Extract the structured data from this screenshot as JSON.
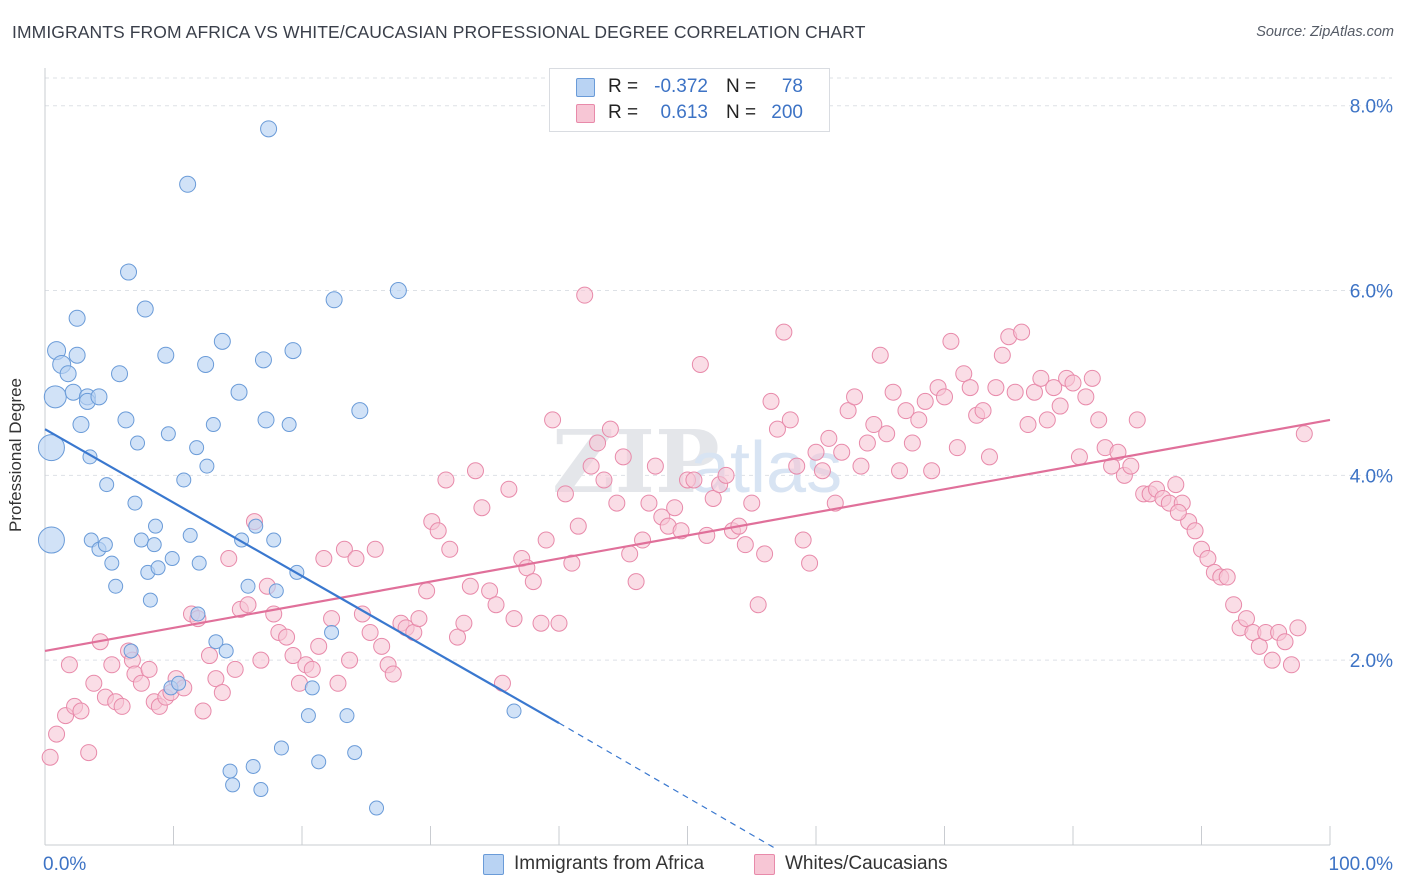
{
  "header": {
    "title": "IMMIGRANTS FROM AFRICA VS WHITE/CAUCASIAN PROFESSIONAL DEGREE CORRELATION CHART",
    "source": "Source: ZipAtlas.com"
  },
  "legend": {
    "rows": [
      {
        "r_label": "R =",
        "r_value": "-0.372",
        "n_label": "N =",
        "n_value": "78"
      },
      {
        "r_label": "R =",
        "r_value": "0.613",
        "n_label": "N =",
        "n_value": "200"
      }
    ]
  },
  "watermark": {
    "zip": "ZIP",
    "atlas": "atlas"
  },
  "colors": {
    "blue_fill": "#b9d3f3",
    "blue_stroke": "#6a9bd8",
    "blue_line": "#3a78cf",
    "pink_fill": "#f7c6d5",
    "pink_stroke": "#e88aaa",
    "pink_line": "#e0709a",
    "axis_text": "#3d73c5",
    "grid": "#dde1e6"
  },
  "chart_data": {
    "type": "scatter",
    "title": "IMMIGRANTS FROM AFRICA VS WHITE/CAUCASIAN PROFESSIONAL DEGREE CORRELATION CHART",
    "xlabel": "",
    "ylabel": "Professional Degree",
    "xlim": [
      0,
      100
    ],
    "ylim": [
      0,
      8.3
    ],
    "x_tick_labels": [
      "0.0%",
      "100.0%"
    ],
    "y_ticks": [
      2,
      4,
      6,
      8
    ],
    "y_tick_labels": [
      "2.0%",
      "4.0%",
      "6.0%",
      "8.0%"
    ],
    "grid": true,
    "legend_position": "bottom-center",
    "series": [
      {
        "name": "Immigrants from Africa",
        "color": "#b9d3f3",
        "r": -0.372,
        "n": 78,
        "trend": {
          "x0": 0,
          "y0": 4.5,
          "x1": 40,
          "y1": 1.32,
          "dashed_to_x": 57,
          "dashed_to_y": -0.05
        },
        "points": [
          [
            0.5,
            3.3,
            13
          ],
          [
            0.5,
            4.3,
            13
          ],
          [
            0.8,
            4.85,
            11
          ],
          [
            0.9,
            5.35,
            9
          ],
          [
            1.3,
            5.2,
            9
          ],
          [
            1.8,
            5.1,
            8
          ],
          [
            2.2,
            4.9,
            8
          ],
          [
            2.5,
            5.3,
            8
          ],
          [
            2.5,
            5.7,
            8
          ],
          [
            2.8,
            4.55,
            8
          ],
          [
            3.3,
            4.85,
            8
          ],
          [
            3.3,
            4.8,
            8
          ],
          [
            3.5,
            4.2,
            7
          ],
          [
            3.6,
            3.3,
            7
          ],
          [
            4.2,
            3.2,
            7
          ],
          [
            4.2,
            4.85,
            8
          ],
          [
            4.7,
            3.25,
            7
          ],
          [
            4.8,
            3.9,
            7
          ],
          [
            5.2,
            3.05,
            7
          ],
          [
            5.5,
            2.8,
            7
          ],
          [
            5.8,
            5.1,
            8
          ],
          [
            6.3,
            4.6,
            8
          ],
          [
            6.5,
            6.2,
            8
          ],
          [
            6.7,
            2.1,
            7
          ],
          [
            7.0,
            3.7,
            7
          ],
          [
            7.2,
            4.35,
            7
          ],
          [
            7.5,
            3.3,
            7
          ],
          [
            7.8,
            5.8,
            8
          ],
          [
            8.0,
            2.95,
            7
          ],
          [
            8.2,
            2.65,
            7
          ],
          [
            8.5,
            3.25,
            7
          ],
          [
            8.6,
            3.45,
            7
          ],
          [
            8.8,
            3.0,
            7
          ],
          [
            9.4,
            5.3,
            8
          ],
          [
            9.6,
            4.45,
            7
          ],
          [
            9.8,
            1.7,
            7
          ],
          [
            9.9,
            3.1,
            7
          ],
          [
            10.4,
            1.75,
            7
          ],
          [
            10.8,
            3.95,
            7
          ],
          [
            11.1,
            7.15,
            8
          ],
          [
            11.3,
            3.35,
            7
          ],
          [
            11.8,
            4.3,
            7
          ],
          [
            11.9,
            2.5,
            7
          ],
          [
            12.0,
            3.05,
            7
          ],
          [
            12.5,
            5.2,
            8
          ],
          [
            12.6,
            4.1,
            7
          ],
          [
            13.1,
            4.55,
            7
          ],
          [
            13.3,
            2.2,
            7
          ],
          [
            13.8,
            5.45,
            8
          ],
          [
            14.1,
            2.1,
            7
          ],
          [
            14.4,
            0.8,
            7
          ],
          [
            14.6,
            0.65,
            7
          ],
          [
            15.1,
            4.9,
            8
          ],
          [
            15.3,
            3.3,
            7
          ],
          [
            15.8,
            2.8,
            7
          ],
          [
            16.2,
            0.85,
            7
          ],
          [
            16.4,
            3.45,
            7
          ],
          [
            16.8,
            0.6,
            7
          ],
          [
            17.0,
            5.25,
            8
          ],
          [
            17.2,
            4.6,
            8
          ],
          [
            17.4,
            7.75,
            8
          ],
          [
            17.8,
            3.3,
            7
          ],
          [
            18.0,
            2.75,
            7
          ],
          [
            18.4,
            1.05,
            7
          ],
          [
            19.0,
            4.55,
            7
          ],
          [
            19.3,
            5.35,
            8
          ],
          [
            19.6,
            2.95,
            7
          ],
          [
            20.5,
            1.4,
            7
          ],
          [
            20.8,
            1.7,
            7
          ],
          [
            21.3,
            0.9,
            7
          ],
          [
            22.3,
            2.3,
            7
          ],
          [
            22.5,
            5.9,
            8
          ],
          [
            23.5,
            1.4,
            7
          ],
          [
            24.1,
            1.0,
            7
          ],
          [
            24.5,
            4.7,
            8
          ],
          [
            25.8,
            0.4,
            7
          ],
          [
            27.5,
            6.0,
            8
          ],
          [
            36.5,
            1.45,
            7
          ]
        ]
      },
      {
        "name": "Whites/Caucasians",
        "color": "#f7c6d5",
        "r": 0.613,
        "n": 200,
        "trend": {
          "x0": 0,
          "y0": 2.1,
          "x1": 100,
          "y1": 4.6
        },
        "points": [
          [
            0.4,
            0.95
          ],
          [
            0.9,
            1.2
          ],
          [
            1.6,
            1.4
          ],
          [
            1.9,
            1.95
          ],
          [
            2.3,
            1.5
          ],
          [
            2.8,
            1.45
          ],
          [
            3.4,
            1.0
          ],
          [
            3.8,
            1.75
          ],
          [
            4.3,
            2.2
          ],
          [
            4.7,
            1.6
          ],
          [
            5.2,
            1.95
          ],
          [
            5.5,
            1.55
          ],
          [
            6.0,
            1.5
          ],
          [
            6.5,
            2.1
          ],
          [
            6.8,
            2.0
          ],
          [
            7.0,
            1.85
          ],
          [
            7.5,
            1.75
          ],
          [
            8.1,
            1.9
          ],
          [
            8.5,
            1.55
          ],
          [
            8.9,
            1.5
          ],
          [
            9.4,
            1.6
          ],
          [
            9.8,
            1.65
          ],
          [
            10.2,
            1.8
          ],
          [
            10.8,
            1.7
          ],
          [
            11.4,
            2.5
          ],
          [
            11.9,
            2.45
          ],
          [
            12.3,
            1.45
          ],
          [
            12.8,
            2.05
          ],
          [
            13.3,
            1.8
          ],
          [
            13.8,
            1.65
          ],
          [
            14.3,
            3.1
          ],
          [
            14.8,
            1.9
          ],
          [
            15.2,
            2.55
          ],
          [
            15.8,
            2.6
          ],
          [
            16.3,
            3.5
          ],
          [
            16.8,
            2.0
          ],
          [
            17.3,
            2.8
          ],
          [
            17.8,
            2.5
          ],
          [
            18.2,
            2.3
          ],
          [
            18.8,
            2.25
          ],
          [
            19.3,
            2.05
          ],
          [
            19.8,
            1.75
          ],
          [
            20.3,
            1.95
          ],
          [
            20.8,
            1.9
          ],
          [
            21.3,
            2.15
          ],
          [
            21.7,
            3.1
          ],
          [
            22.3,
            2.45
          ],
          [
            22.8,
            1.75
          ],
          [
            23.3,
            3.2
          ],
          [
            23.7,
            2.0
          ],
          [
            24.2,
            3.1
          ],
          [
            24.7,
            2.5
          ],
          [
            25.3,
            2.3
          ],
          [
            25.7,
            3.2
          ],
          [
            26.2,
            2.15
          ],
          [
            26.7,
            1.95
          ],
          [
            27.1,
            1.85
          ],
          [
            27.7,
            2.4
          ],
          [
            28.1,
            2.35
          ],
          [
            28.7,
            2.3
          ],
          [
            29.1,
            2.45
          ],
          [
            29.7,
            2.75
          ],
          [
            30.1,
            3.5
          ],
          [
            30.6,
            3.4
          ],
          [
            31.2,
            3.95
          ],
          [
            31.5,
            3.2
          ],
          [
            32.1,
            2.25
          ],
          [
            32.6,
            2.4
          ],
          [
            33.1,
            2.8
          ],
          [
            33.5,
            4.05
          ],
          [
            34.0,
            3.65
          ],
          [
            34.6,
            2.75
          ],
          [
            35.1,
            2.6
          ],
          [
            35.6,
            1.75
          ],
          [
            36.1,
            3.85
          ],
          [
            36.5,
            2.45
          ],
          [
            37.1,
            3.1
          ],
          [
            37.5,
            3.0
          ],
          [
            38.0,
            2.85
          ],
          [
            38.6,
            2.4
          ],
          [
            39.0,
            3.3
          ],
          [
            39.5,
            4.6
          ],
          [
            40.0,
            2.4
          ],
          [
            40.5,
            3.8
          ],
          [
            41.0,
            3.05
          ],
          [
            41.5,
            3.45
          ],
          [
            42.0,
            5.95
          ],
          [
            42.5,
            4.1
          ],
          [
            43.0,
            4.35
          ],
          [
            43.5,
            3.95
          ],
          [
            44.0,
            4.5
          ],
          [
            44.5,
            3.7
          ],
          [
            45.0,
            4.2
          ],
          [
            45.5,
            3.15
          ],
          [
            46.0,
            2.85
          ],
          [
            46.5,
            3.3
          ],
          [
            47.0,
            3.7
          ],
          [
            47.5,
            4.1
          ],
          [
            48.0,
            3.55
          ],
          [
            48.5,
            3.45
          ],
          [
            49.0,
            3.65
          ],
          [
            49.5,
            3.4
          ],
          [
            50.0,
            3.95
          ],
          [
            50.5,
            3.95
          ],
          [
            51.0,
            5.2
          ],
          [
            51.5,
            3.35
          ],
          [
            52.0,
            3.75
          ],
          [
            52.5,
            3.9
          ],
          [
            53.0,
            4.0
          ],
          [
            53.5,
            3.4
          ],
          [
            54.0,
            3.45
          ],
          [
            54.5,
            3.25
          ],
          [
            55.0,
            3.7
          ],
          [
            55.5,
            2.6
          ],
          [
            56.0,
            3.15
          ],
          [
            56.5,
            4.8
          ],
          [
            57.0,
            4.5
          ],
          [
            57.5,
            5.55
          ],
          [
            58.0,
            4.6
          ],
          [
            58.5,
            4.1
          ],
          [
            59.0,
            3.3
          ],
          [
            59.5,
            3.05
          ],
          [
            60.0,
            4.25
          ],
          [
            60.5,
            4.05
          ],
          [
            61.0,
            4.4
          ],
          [
            61.5,
            3.7
          ],
          [
            62.0,
            4.25
          ],
          [
            62.5,
            4.7
          ],
          [
            63.0,
            4.85
          ],
          [
            63.5,
            4.1
          ],
          [
            64.0,
            4.35
          ],
          [
            64.5,
            4.55
          ],
          [
            65.0,
            5.3
          ],
          [
            65.5,
            4.45
          ],
          [
            66.0,
            4.9
          ],
          [
            66.5,
            4.05
          ],
          [
            67.0,
            4.7
          ],
          [
            67.5,
            4.35
          ],
          [
            68.0,
            4.6
          ],
          [
            68.5,
            4.8
          ],
          [
            69.0,
            4.05
          ],
          [
            69.5,
            4.95
          ],
          [
            70.0,
            4.85
          ],
          [
            70.5,
            5.45
          ],
          [
            71.0,
            4.3
          ],
          [
            71.5,
            5.1
          ],
          [
            72.0,
            4.95
          ],
          [
            72.5,
            4.65
          ],
          [
            73.0,
            4.7
          ],
          [
            73.5,
            4.2
          ],
          [
            74.0,
            4.95
          ],
          [
            74.5,
            5.3
          ],
          [
            75.0,
            5.5
          ],
          [
            75.5,
            4.9
          ],
          [
            76.0,
            5.55
          ],
          [
            76.5,
            4.55
          ],
          [
            77.0,
            4.9
          ],
          [
            77.5,
            5.05
          ],
          [
            78.0,
            4.6
          ],
          [
            78.5,
            4.95
          ],
          [
            79.0,
            4.75
          ],
          [
            79.5,
            5.05
          ],
          [
            80.0,
            5.0
          ],
          [
            80.5,
            4.2
          ],
          [
            81.0,
            4.85
          ],
          [
            81.5,
            5.05
          ],
          [
            82.0,
            4.6
          ],
          [
            82.5,
            4.3
          ],
          [
            83.0,
            4.1
          ],
          [
            83.5,
            4.25
          ],
          [
            84.0,
            4.0
          ],
          [
            84.5,
            4.1
          ],
          [
            85.0,
            4.6
          ],
          [
            85.5,
            3.8
          ],
          [
            86.0,
            3.8
          ],
          [
            86.5,
            3.85
          ],
          [
            87.0,
            3.75
          ],
          [
            87.5,
            3.7
          ],
          [
            88.0,
            3.9
          ],
          [
            88.5,
            3.7
          ],
          [
            89.0,
            3.5
          ],
          [
            89.5,
            3.4
          ],
          [
            90.0,
            3.2
          ],
          [
            90.5,
            3.1
          ],
          [
            91.0,
            2.95
          ],
          [
            91.5,
            2.9
          ],
          [
            92.0,
            2.9
          ],
          [
            92.5,
            2.6
          ],
          [
            93.0,
            2.35
          ],
          [
            93.5,
            2.45
          ],
          [
            94.0,
            2.3
          ],
          [
            94.5,
            2.15
          ],
          [
            95.0,
            2.3
          ],
          [
            95.5,
            2.0
          ],
          [
            96.0,
            2.3
          ],
          [
            96.5,
            2.2
          ],
          [
            97.0,
            1.95
          ],
          [
            97.5,
            2.35
          ],
          [
            98.0,
            4.45
          ],
          [
            88.2,
            3.6
          ]
        ]
      }
    ]
  },
  "bottom_legend": {
    "items": [
      {
        "label": "Immigrants from Africa"
      },
      {
        "label": "Whites/Caucasians"
      }
    ]
  }
}
